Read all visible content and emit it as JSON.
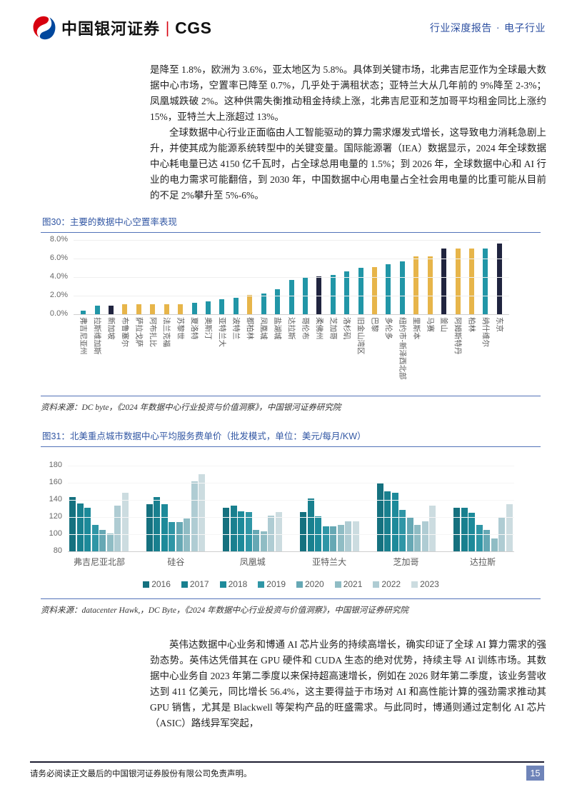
{
  "header": {
    "brand_cn": "中国银河证券",
    "brand_divider": "|",
    "brand_en": "CGS",
    "report_type": "行业深度报告",
    "separator": "·",
    "industry": "电子行业"
  },
  "body": {
    "p1": "是降至 1.8%，欧洲为 3.6%，亚太地区为 5.8%。具体到关键市场，北弗吉尼亚作为全球最大数据中心市场，空置率已降至 0.7%，几乎处于满租状态；亚特兰大从几年前的 9%降至 2-3%；凤凰城跌破 2%。这种供需失衡推动租金持续上涨，北弗吉尼亚和芝加哥平均租金同比上涨约 15%，亚特兰大上涨超过 13%。",
    "p2": "全球数据中心行业正面临由人工智能驱动的算力需求爆发式增长，这导致电力消耗急剧上升，并使其成为能源系统转型中的关键变量。国际能源署（IEA）数据显示，2024 年全球数据中心耗电量已达 4150 亿千瓦时，占全球总用电量的 1.5%；到 2026 年，全球数据中心和 AI 行业的电力需求可能翻倍，到 2030 年，中国数据中心用电量占全社会用电量的比重可能从目前的不足 2%攀升至 5%-6%。",
    "p3": "英伟达数据中心业务和博通 AI 芯片业务的持续高增长，确实印证了全球 AI 算力需求的强劲态势。英伟达凭借其在 GPU 硬件和 CUDA 生态的绝对优势，持续主导 AI 训练市场。其数据中心业务自 2023 年第二季度以来保持超高速增长，例如在 2026 财年第二季度，该业务营收达到 411 亿美元，同比增长 56.4%，这主要得益于市场对 AI 和高性能计算的强劲需求推动其 GPU 销售，尤其是 Blackwell 等架构产品的旺盛需求。与此同时，博通则通过定制化 AI 芯片（ASIC）路线异军突起，"
  },
  "figures": {
    "fig30": {
      "title": "图30：主要的数据中心空置率表现",
      "source": "资料来源：DC byte，《2024 年数据中心行业投资与价值洞察》，中国银河证券研究院"
    },
    "fig31": {
      "title": "图31：北美重点城市数据中心平均服务费单价（批发模式，单位：美元/每月/KW）",
      "source": "资料来源：datacenter Hawk,，DC Byte，《2024 年数据中心行业投资与价值洞察》，中国银河证券研究院"
    }
  },
  "footer": {
    "disclaimer": "请务必阅读正文最后的中国银河证券股份有限公司免责声明。",
    "page_number": "15"
  },
  "chart_data": [
    {
      "type": "bar",
      "title": "主要的数据中心空置率表现",
      "ylabel": "空置率",
      "ylim": [
        0,
        8
      ],
      "yticks": [
        "8.0%",
        "6.0%",
        "4.0%",
        "2.0%",
        "0.0%"
      ],
      "grid": true,
      "legend_position": "none",
      "palette": {
        "teal": "#2196a7",
        "gold": "#e7b54a",
        "navy": "#20243f"
      },
      "categories": [
        "弗吉尼亚州",
        "拉斯维加斯",
        "新加坡",
        "布鲁塞尔",
        "萨拉戈萨",
        "阿布扎比",
        "法兰克福",
        "苏黎世",
        "夏洛特",
        "奥斯汀",
        "亚特兰大",
        "波特兰",
        "都柏林",
        "凤凰城",
        "盐湖城",
        "达拉斯",
        "哥伦布",
        "柔佛州",
        "芝加哥",
        "洛杉矶",
        "旧金山湾区",
        "巴黎",
        "多伦多",
        "纽约市-新泽西北部",
        "里斯本",
        "马赛",
        "釜山",
        "阿姆斯特丹",
        "柏林",
        "纳什维尔",
        "东京"
      ],
      "values": [
        0.4,
        0.9,
        0.9,
        1.1,
        1.1,
        1.1,
        1.1,
        1.1,
        1.2,
        1.4,
        1.6,
        1.8,
        2.1,
        2.2,
        2.7,
        3.7,
        3.9,
        4.1,
        4.2,
        4.6,
        5.0,
        5.1,
        5.4,
        5.7,
        6.2,
        6.2,
        7.1,
        7.1,
        7.1,
        7.1,
        7.6
      ],
      "colors": [
        "teal",
        "teal",
        "navy",
        "gold",
        "gold",
        "gold",
        "gold",
        "gold",
        "teal",
        "teal",
        "teal",
        "teal",
        "gold",
        "teal",
        "teal",
        "teal",
        "teal",
        "navy",
        "teal",
        "teal",
        "teal",
        "gold",
        "teal",
        "teal",
        "gold",
        "gold",
        "navy",
        "gold",
        "gold",
        "teal",
        "navy"
      ]
    },
    {
      "type": "bar",
      "title": "北美重点城市数据中心平均服务费单价（批发模式，单位：美元/每月/KW）",
      "ylabel": "美元/每月/KW",
      "ylim": [
        80,
        180
      ],
      "yticks": [
        "180",
        "160",
        "140",
        "120",
        "100",
        "80"
      ],
      "grid": false,
      "legend_position": "bottom",
      "categories": [
        "弗吉尼亚北部",
        "硅谷",
        "凤凰城",
        "亚特兰大",
        "芝加哥",
        "达拉斯"
      ],
      "series": [
        {
          "name": "2016",
          "color": "#15717f",
          "values": [
            143,
            135,
            131,
            126,
            160,
            131
          ]
        },
        {
          "name": "2017",
          "color": "#19808f",
          "values": [
            136,
            143,
            133,
            142,
            150,
            131
          ]
        },
        {
          "name": "2018",
          "color": "#1d8a9a",
          "values": [
            131,
            135,
            127,
            121,
            148,
            125
          ]
        },
        {
          "name": "2019",
          "color": "#2f96a6",
          "values": [
            111,
            114,
            126,
            109,
            128,
            111
          ]
        },
        {
          "name": "2020",
          "color": "#66a8b4",
          "values": [
            105,
            114,
            105,
            109,
            120,
            105
          ]
        },
        {
          "name": "2021",
          "color": "#8fbcc4",
          "values": [
            101,
            118,
            103,
            111,
            111,
            95
          ]
        },
        {
          "name": "2022",
          "color": "#afccd3",
          "values": [
            133,
            162,
            122,
            115,
            115,
            120
          ]
        },
        {
          "name": "2023",
          "color": "#ccdce0",
          "values": [
            148,
            170,
            126,
            115,
            133,
            135
          ]
        }
      ]
    }
  ]
}
